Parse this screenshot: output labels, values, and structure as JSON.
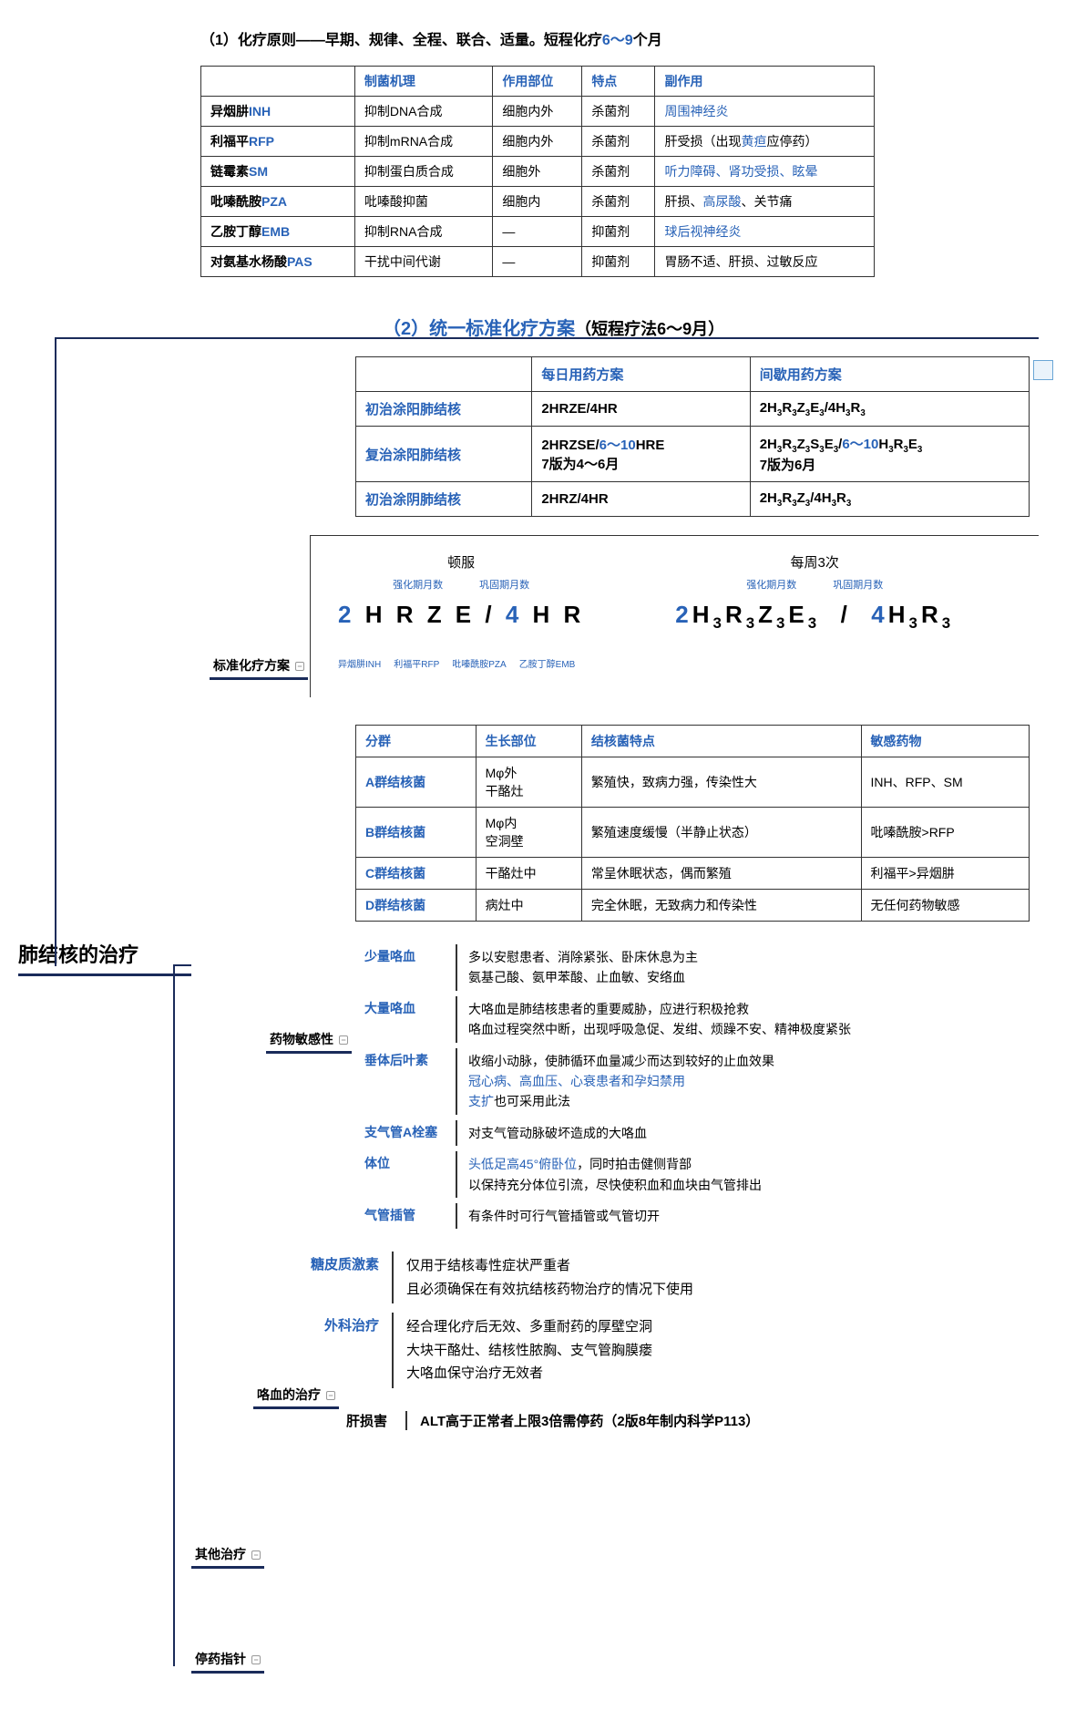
{
  "colors": {
    "accent_blue": "#2862b7",
    "dark_line": "#1a2b5a",
    "teal": "#0a8a8a",
    "border": "#333333",
    "bg": "#ffffff"
  },
  "section1": {
    "title_prefix": "（1）化疗原则——早期、规律、全程、联合、适量。短程化疗",
    "title_highlight": "6～9",
    "title_suffix": "个月",
    "headers": [
      "",
      "制菌机理",
      "作用部位",
      "特点",
      "副作用"
    ],
    "rows": [
      {
        "drug": "异烟肼",
        "code": "INH",
        "mech": "抑制DNA合成",
        "site": "细胞内外",
        "feat": "杀菌剂",
        "side_pre": "",
        "side_link": "周围神经炎",
        "side_post": ""
      },
      {
        "drug": "利福平",
        "code": "RFP",
        "mech": "抑制mRNA合成",
        "site": "细胞内外",
        "feat": "杀菌剂",
        "side_pre": "肝受损（出现",
        "side_link": "黄疸",
        "side_post": "应停药）"
      },
      {
        "drug": "链霉素",
        "code": "SM",
        "mech": "抑制蛋白质合成",
        "site": "细胞外",
        "feat": "杀菌剂",
        "side_pre": "",
        "side_link": "听力障碍、肾功受损、眩晕",
        "side_post": ""
      },
      {
        "drug": "吡嗪酰胺",
        "code": "PZA",
        "mech": "吡嗪酸抑菌",
        "site": "细胞内",
        "feat": "杀菌剂",
        "side_pre": "肝损、",
        "side_link": "高尿酸",
        "side_post": "、关节痛"
      },
      {
        "drug": "乙胺丁醇",
        "code": "EMB",
        "mech": "抑制RNA合成",
        "site": "—",
        "feat": "抑菌剂",
        "side_pre": "",
        "side_link": "球后视神经炎",
        "side_post": ""
      },
      {
        "drug": "对氨基水杨酸",
        "code": "PAS",
        "mech": "干扰中间代谢",
        "site": "—",
        "feat": "抑菌剂",
        "side_pre": "胃肠不适、肝损、过敏反应",
        "side_link": "",
        "side_post": ""
      }
    ]
  },
  "section2": {
    "heading": "（2）统一标准化疗方案",
    "heading_paren": "（短程疗法6～9月）",
    "headers": [
      "",
      "每日用药方案",
      "间歇用药方案"
    ],
    "rows": [
      {
        "label": "初治涂阳肺结核",
        "daily": "2HRZE/4HR",
        "inter_html": "2H<span class=s3>3</span>R<span class=s3>3</span>Z<span class=s3>3</span>E<span class=s3>3</span>/4H<span class=s3>3</span>R<span class=s3>3</span>"
      },
      {
        "label": "复治涂阳肺结核",
        "daily_html": "2HRZSE/<span class=highlight-blue>6～10</span>HRE<br>7版为4～6月",
        "inter_html": "2H<span class=s3>3</span>R<span class=s3>3</span>Z<span class=s3>3</span>S<span class=s3>3</span>E<span class=s3>3</span>/<span class=highlight-blue>6～10</span>H<span class=s3>3</span>R<span class=s3>3</span>E<span class=s3>3</span><br>7版为6月"
      },
      {
        "label": "初治涂阴肺结核",
        "daily": "2HRZ/4HR",
        "inter_html": "2H<span class=s3>3</span>R<span class=s3>3</span>Z<span class=s3>3</span>/4H<span class=s3>3</span>R<span class=s3>3</span>"
      }
    ]
  },
  "diagram": {
    "col1_title": "顿服",
    "col2_title": "每周3次",
    "sublabel1": "强化期月数",
    "sublabel2": "巩固期月数",
    "formula1_html": "<span class=n>2</span> H R Z E / <span class=n>4</span> H R",
    "formula2_html": "<span class=n>2</span>H<span class=s3>3</span>R<span class=s3>3</span>Z<span class=s3>3</span>E<span class=s3>3</span> &nbsp;/&nbsp; <span class=n>4</span>H<span class=s3>3</span>R<span class=s3>3</span>",
    "drug_labels": [
      "异烟肼INH",
      "利福平RFP",
      "吡嗪酰胺PZA",
      "乙胺丁醇EMB"
    ]
  },
  "branch_labels": {
    "std": "标准化疗方案",
    "sens": "药物敏感性",
    "hemo": "咯血的治疗",
    "other": "其他治疗",
    "stop": "停药指针"
  },
  "root_title": "肺结核的治疗",
  "table3": {
    "headers": [
      "分群",
      "生长部位",
      "结核菌特点",
      "敏感药物"
    ],
    "rows": [
      {
        "g": "A群结核菌",
        "site": "Mφ外\n干酪灶",
        "feat": "繁殖快，致病力强，传染性大",
        "drug": "INH、RFP、SM"
      },
      {
        "g": "B群结核菌",
        "site": "Mφ内\n空洞壁",
        "feat": "繁殖速度缓慢（半静止状态）",
        "drug": "吡嗪酰胺>RFP"
      },
      {
        "g": "C群结核菌",
        "site": "干酪灶中",
        "feat": "常呈休眠状态，偶而繁殖",
        "drug": "利福平>异烟肼"
      },
      {
        "g": "D群结核菌",
        "site": "病灶中",
        "feat": "完全休眠，无致病力和传染性",
        "drug": "无任何药物敏感"
      }
    ]
  },
  "hemo": {
    "rows": [
      {
        "label": "少量咯血",
        "text": "多以安慰患者、消除紧张、卧床休息为主\n氨基己酸、氨甲苯酸、止血敏、安络血"
      },
      {
        "label": "大量咯血",
        "text": "大咯血是肺结核患者的重要威胁，应进行积极抢救\n咯血过程突然中断，出现呼吸急促、发绀、烦躁不安、精神极度紧张"
      },
      {
        "label": "垂体后叶素",
        "text_html": "收缩小动脉，使肺循环血量减少而达到较好的止血效果\n<span class=highlight-link>冠心病、高血压、心衰患者和孕妇禁用</span>\n<span class=highlight-link>支扩</span>也可采用此法"
      },
      {
        "label": "支气管A栓塞",
        "text": "对支气管动脉破坏造成的大咯血"
      },
      {
        "label": "体位",
        "text_html": "<span class=highlight-link>头低足高45°俯卧位</span>，同时拍击健侧背部\n以保持充分体位引流，尽快使积血和血块由气管排出"
      },
      {
        "label": "气管插管",
        "text": "有条件时可行气管插管或气管切开"
      }
    ]
  },
  "other": {
    "rows": [
      {
        "label": "糖皮质激素",
        "text": "仅用于结核毒性症状严重者\n且必须确保在有效抗结核药物治疗的情况下使用"
      },
      {
        "label": "外科治疗",
        "text": "经合理化疗后无效、多重耐药的厚壁空洞\n大块干酪灶、结核性脓胸、支气管胸膜瘘\n大咯血保守治疗无效者"
      }
    ]
  },
  "stop": {
    "label1": "肝损害",
    "text": "ALT高于正常者上限3倍需停药（2版8年制内科学P113）"
  }
}
